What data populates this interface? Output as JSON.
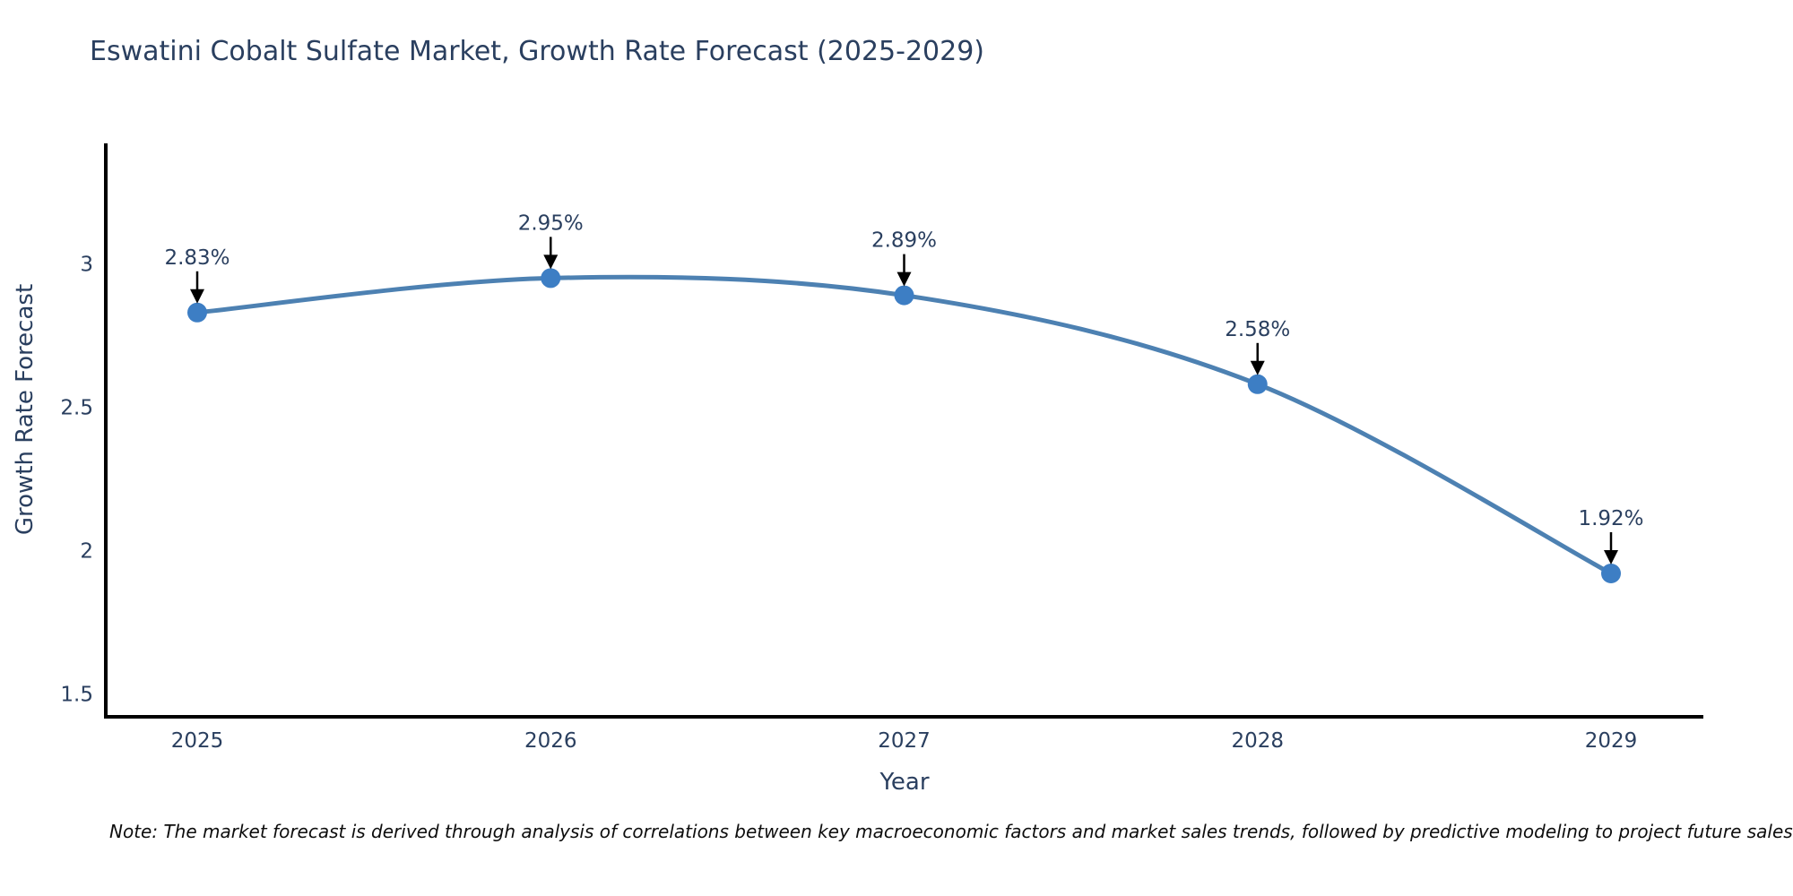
{
  "title": "Eswatini Cobalt Sulfate Market, Growth Rate Forecast (2025-2029)",
  "note": "Note: The market forecast is derived through analysis of correlations between key macroeconomic factors and market sales trends, followed by predictive modeling to project future sales",
  "chart_data": {
    "type": "line",
    "title": "Eswatini Cobalt Sulfate Market, Growth Rate Forecast (2025-2029)",
    "xlabel": "Year",
    "ylabel": "Growth Rate Forecast",
    "categories": [
      "2025",
      "2026",
      "2027",
      "2028",
      "2029"
    ],
    "values": [
      2.83,
      2.95,
      2.89,
      2.58,
      1.92
    ],
    "point_labels": [
      "2.83%",
      "2.95%",
      "2.89%",
      "2.58%",
      "1.92%"
    ],
    "yticks": [
      1.5,
      2,
      2.5,
      3
    ],
    "ytick_labels": [
      "1.5",
      "2",
      "2.5",
      "3"
    ],
    "ylim": [
      1.42,
      3.42
    ],
    "smooth": true,
    "grid": false,
    "legend_position": "none",
    "colors": {
      "line": "#4d81b2",
      "marker": "#3d7ec4",
      "axis": "#000000",
      "text": "#2a3f5f",
      "annotation_arrow": "#000000",
      "background": "#ffffff"
    }
  }
}
